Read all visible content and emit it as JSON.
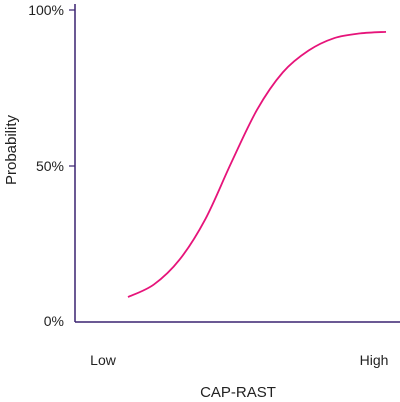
{
  "chart_data": {
    "type": "line",
    "xlabel": "CAP-RAST",
    "ylabel": "Probability",
    "x_categories": [
      "Low",
      "High"
    ],
    "y_ticks": [
      "0%",
      "50%",
      "100%"
    ],
    "ylim": [
      0,
      100
    ],
    "xlim": [
      0,
      100
    ],
    "grid": false,
    "series": [
      {
        "color": "#e6147a",
        "x": [
          0,
          10,
          20,
          30,
          40,
          50,
          60,
          70,
          80,
          90,
          100
        ],
        "y": [
          8,
          12,
          20,
          33,
          51,
          68,
          80,
          87,
          91,
          92.5,
          93
        ]
      }
    ]
  },
  "colors": {
    "axis": "#3a2270",
    "curve": "#e6147a"
  }
}
